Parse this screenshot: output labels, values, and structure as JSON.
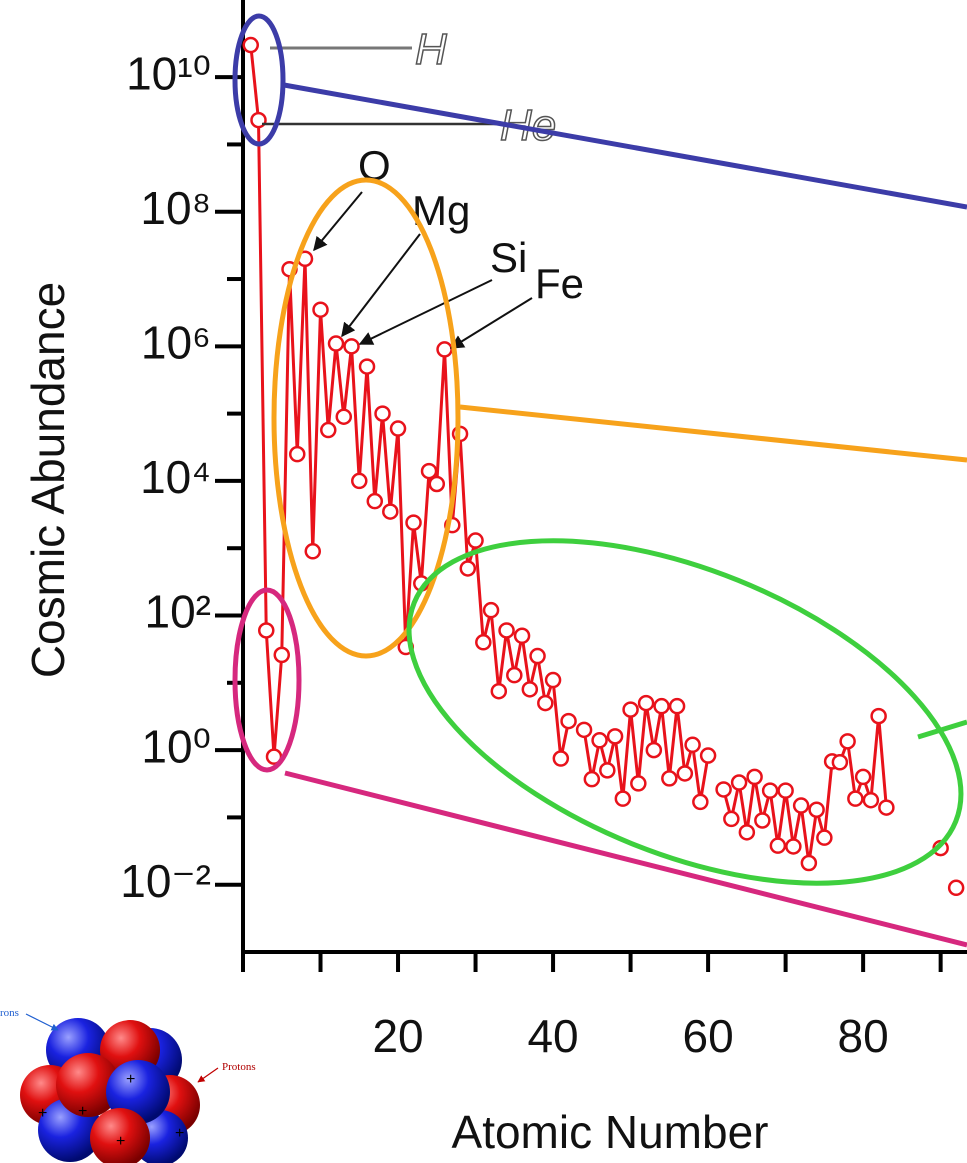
{
  "chart_data": {
    "type": "line",
    "x_label": "Atomic Number",
    "y_label": "Cosmic Abundance",
    "x": [
      1,
      2,
      3,
      4,
      5,
      6,
      7,
      8,
      9,
      10,
      11,
      12,
      13,
      14,
      15,
      16,
      17,
      18,
      19,
      20,
      21,
      22,
      23,
      24,
      25,
      26,
      27,
      28,
      29,
      30,
      31,
      32,
      33,
      34,
      35,
      36,
      37,
      38,
      39,
      40,
      41,
      42,
      43,
      44,
      45,
      46,
      47,
      48,
      49,
      50,
      51,
      52,
      53,
      54,
      55,
      56,
      57,
      58,
      59,
      60,
      61,
      62,
      63,
      64,
      65,
      66,
      67,
      68,
      69,
      70,
      71,
      72,
      73,
      74,
      75,
      76,
      77,
      78,
      79,
      80,
      81,
      82,
      83,
      84,
      85,
      86,
      87,
      88,
      89,
      90,
      91,
      92
    ],
    "values": [
      30000000000.0,
      2300000000.0,
      60,
      0.8,
      26,
      14000000.0,
      25000.0,
      20000000.0,
      900,
      3500000.0,
      57000.0,
      1100000.0,
      90000.0,
      1000000.0,
      10000.0,
      500000.0,
      5000.0,
      100000.0,
      3500.0,
      60000.0,
      34,
      2400.0,
      300,
      14000.0,
      9000.0,
      900000.0,
      2200.0,
      50000.0,
      500,
      1300.0,
      40,
      120,
      7.5,
      60,
      13,
      50,
      8,
      25,
      5,
      11,
      0.75,
      2.7,
      null,
      2,
      0.37,
      1.4,
      0.5,
      1.6,
      0.19,
      4,
      0.32,
      5,
      1,
      4.5,
      0.38,
      4.5,
      0.45,
      1.2,
      0.17,
      0.83,
      null,
      0.26,
      0.095,
      0.33,
      0.06,
      0.4,
      0.09,
      0.25,
      0.038,
      0.25,
      0.037,
      0.15,
      0.021,
      0.13,
      0.05,
      0.68,
      0.66,
      1.35,
      0.19,
      0.4,
      0.18,
      3.2,
      0.14,
      null,
      null,
      null,
      null,
      null,
      null,
      0.035,
      null,
      0.009
    ],
    "color": "#e8121b",
    "marker_fill": "#ffffff",
    "log_y": true,
    "xlim": [
      0,
      93.4
    ],
    "xticks": [
      20,
      40,
      60,
      80
    ],
    "xminor": [
      0,
      10,
      30,
      50,
      70,
      90
    ],
    "ylim": [
      0.001,
      140000000000.0
    ],
    "yticks": [
      {
        "value": 0.01,
        "label": "10⁻²"
      },
      {
        "value": 1,
        "label": "10⁰"
      },
      {
        "value": 100,
        "label": "10²"
      },
      {
        "value": 10000,
        "label": "10⁴"
      },
      {
        "value": 1000000,
        "label": "10⁶"
      },
      {
        "value": 100000000,
        "label": "10⁸"
      },
      {
        "value": 10000000000,
        "label": "10¹⁰"
      }
    ],
    "yminor": [
      0.1,
      10,
      1000,
      100000,
      10000000,
      1000000000
    ],
    "annotations": [
      "H",
      "He",
      "O",
      "Mg",
      "Si",
      "Fe"
    ]
  },
  "inset": {
    "labels": [
      "rons",
      "Protons"
    ],
    "sign": "+"
  }
}
